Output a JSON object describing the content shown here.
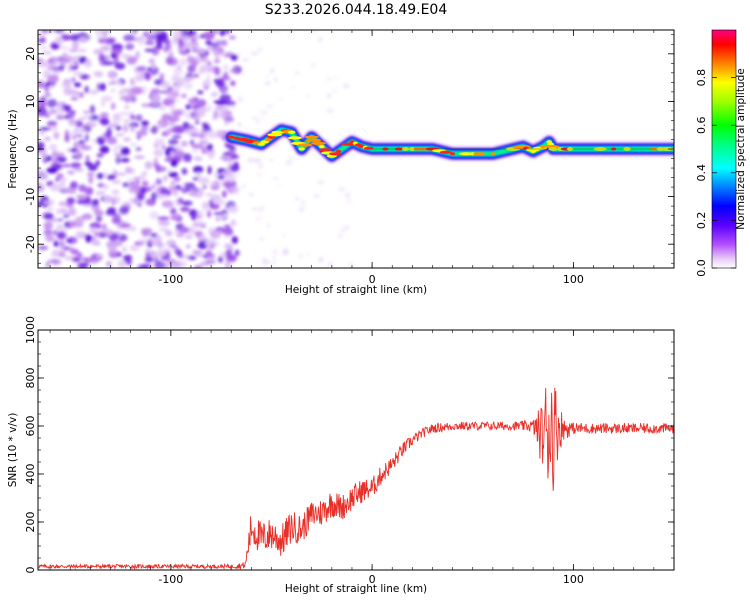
{
  "figure_title": "S233.2026.044.18.49.E04",
  "chart_data": [
    {
      "type": "heatmap",
      "title": "S233.2026.044.18.49.E04",
      "xlabel": "Height of straight line (km)",
      "ylabel": "Frequency (Hz)",
      "xlim": [
        -166,
        150
      ],
      "ylim": [
        -25,
        25
      ],
      "xticks": [
        -100,
        0,
        100
      ],
      "xtick_labels": [
        "-100",
        "0",
        "100"
      ],
      "yticks": [
        -20,
        -10,
        0,
        10,
        20
      ],
      "ytick_labels": [
        "-20",
        "-10",
        "0",
        "10",
        "20"
      ],
      "noise_region_x": [
        -166,
        -70
      ],
      "tone_path": {
        "x": [
          -70,
          -62,
          -55,
          -50,
          -45,
          -40,
          -35,
          -30,
          -25,
          -20,
          -15,
          -10,
          -5,
          0,
          10,
          20,
          30,
          40,
          50,
          60,
          70,
          75,
          80,
          85,
          88,
          90,
          95,
          100,
          120,
          140,
          150
        ],
        "y": [
          2.5,
          1.8,
          1.0,
          2.5,
          4.0,
          3.5,
          0.0,
          2.5,
          0.5,
          -1.5,
          0.0,
          1.5,
          0.5,
          0.0,
          0.0,
          0.0,
          0.0,
          -1.0,
          -1.0,
          -1.0,
          0.0,
          0.5,
          -0.5,
          0.5,
          1.5,
          0.0,
          0.0,
          0.0,
          0.0,
          0.0,
          0.0
        ]
      },
      "colorbar": {
        "label": "Normalized spectral amplitude",
        "ticks": [
          0.0,
          0.2,
          0.4,
          0.6,
          0.8
        ],
        "tick_labels": [
          "0.0",
          "0.2",
          "0.4",
          "0.6",
          "0.8"
        ],
        "range": [
          0.0,
          1.0
        ]
      }
    },
    {
      "type": "line",
      "xlabel": "Height of straight line (km)",
      "ylabel": "SNR (10 * v/v)",
      "xlim": [
        -166,
        150
      ],
      "ylim": [
        0,
        1000
      ],
      "xticks": [
        -100,
        0,
        100
      ],
      "xtick_labels": [
        "-100",
        "0",
        "100"
      ],
      "yticks": [
        0,
        200,
        400,
        600,
        800,
        1000
      ],
      "ytick_labels": [
        "0",
        "200",
        "400",
        "600",
        "800",
        "1000"
      ],
      "series": [
        {
          "name": "SNR",
          "color": "#e8302a",
          "x": [
            -166,
            -140,
            -110,
            -90,
            -70,
            -63,
            -60,
            -55,
            -50,
            -45,
            -40,
            -35,
            -30,
            -25,
            -20,
            -15,
            -10,
            -5,
            0,
            5,
            10,
            15,
            20,
            25,
            30,
            40,
            50,
            60,
            70,
            80,
            85,
            88,
            90,
            92,
            95,
            100,
            110,
            120,
            130,
            140,
            150
          ],
          "y": [
            15,
            15,
            15,
            15,
            15,
            20,
            180,
            130,
            150,
            120,
            180,
            170,
            230,
            240,
            280,
            260,
            300,
            330,
            340,
            400,
            440,
            500,
            540,
            570,
            590,
            600,
            600,
            600,
            600,
            600,
            560,
            620,
            580,
            600,
            590,
            590,
            590,
            590,
            590,
            590,
            590
          ],
          "spread": [
            8,
            8,
            8,
            8,
            8,
            15,
            80,
            70,
            70,
            70,
            70,
            60,
            60,
            60,
            60,
            55,
            55,
            50,
            45,
            40,
            35,
            30,
            25,
            20,
            20,
            18,
            18,
            18,
            18,
            25,
            150,
            300,
            250,
            150,
            50,
            25,
            22,
            22,
            22,
            22,
            22
          ]
        }
      ]
    }
  ]
}
